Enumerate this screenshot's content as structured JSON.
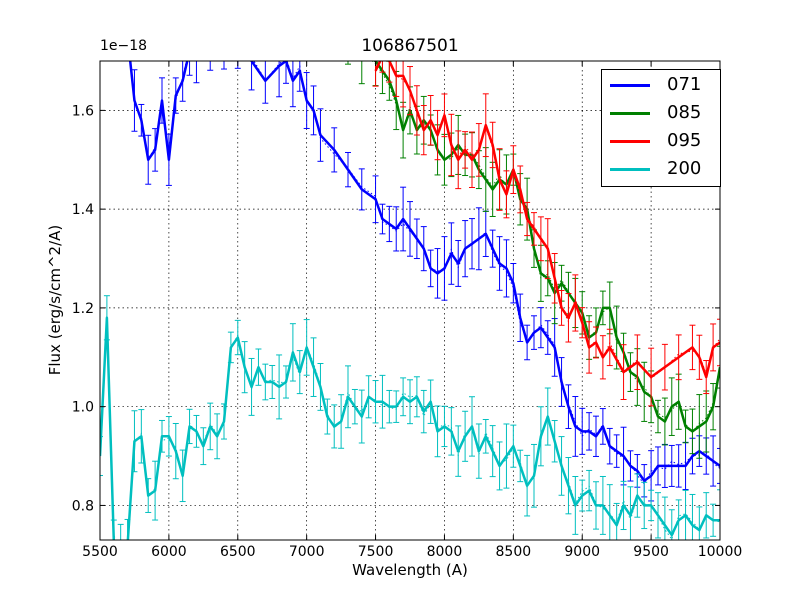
{
  "chart_data": {
    "type": "line",
    "title": "106867501",
    "y_offset_text": "1e−18",
    "xlabel": "Wavelength (A)",
    "ylabel": "Flux (erg/s/cm^2/A)",
    "xlim": [
      5500,
      10000
    ],
    "ylim": [
      0.73,
      1.7
    ],
    "grid": true,
    "legend_position": "top-right",
    "x_ticks": [
      5500,
      6000,
      6500,
      7000,
      7500,
      8000,
      8500,
      9000,
      9500,
      10000
    ],
    "x_tick_labels": [
      "5500",
      "6000",
      "6500",
      "7000",
      "7500",
      "8000",
      "8500",
      "9000",
      "9500",
      "10000"
    ],
    "y_ticks": [
      0.8,
      1.0,
      1.2,
      1.4,
      1.6
    ],
    "y_tick_labels": [
      "0.8",
      "1.0",
      "1.2",
      "1.4",
      "1.6"
    ],
    "series": [
      {
        "name": "071",
        "color": "#0000ff",
        "x": [
          5700,
          5750,
          5800,
          5850,
          5900,
          5950,
          6000,
          6050,
          6100,
          6150,
          6200,
          6300,
          6400,
          6500,
          6600,
          6700,
          6800,
          6850,
          6900,
          6950,
          7000,
          7050,
          7100,
          7200,
          7300,
          7400,
          7500,
          7550,
          7600,
          7650,
          7700,
          7750,
          7800,
          7850,
          7900,
          7950,
          8000,
          8050,
          8100,
          8150,
          8200,
          8250,
          8300,
          8350,
          8400,
          8450,
          8500,
          8550,
          8600,
          8650,
          8700,
          8750,
          8800,
          8850,
          8900,
          8950,
          9000,
          9050,
          9100,
          9150,
          9200,
          9250,
          9300,
          9350,
          9400,
          9450,
          9500,
          9550,
          9600,
          9650,
          9700,
          9750,
          9800,
          9850,
          9900,
          9950,
          10000
        ],
        "y": [
          1.75,
          1.62,
          1.58,
          1.5,
          1.52,
          1.62,
          1.5,
          1.63,
          1.66,
          1.72,
          1.72,
          1.74,
          1.72,
          1.75,
          1.7,
          1.66,
          1.69,
          1.7,
          1.66,
          1.68,
          1.62,
          1.6,
          1.55,
          1.52,
          1.48,
          1.44,
          1.42,
          1.38,
          1.37,
          1.36,
          1.38,
          1.36,
          1.34,
          1.32,
          1.28,
          1.27,
          1.28,
          1.31,
          1.29,
          1.32,
          1.33,
          1.34,
          1.35,
          1.32,
          1.29,
          1.28,
          1.25,
          1.18,
          1.13,
          1.15,
          1.16,
          1.14,
          1.12,
          1.05,
          1.0,
          0.96,
          0.95,
          0.95,
          0.94,
          0.96,
          0.92,
          0.91,
          0.9,
          0.88,
          0.87,
          0.85,
          0.86,
          0.88,
          0.88,
          0.88,
          0.88,
          0.88,
          0.9,
          0.91,
          0.9,
          0.89,
          0.88
        ]
      },
      {
        "name": "085",
        "color": "#008000",
        "x": [
          7300,
          7400,
          7500,
          7550,
          7600,
          7650,
          7700,
          7750,
          7800,
          7850,
          7900,
          7950,
          8000,
          8050,
          8100,
          8150,
          8200,
          8250,
          8300,
          8350,
          8400,
          8450,
          8500,
          8550,
          8600,
          8650,
          8700,
          8750,
          8800,
          8850,
          8900,
          8950,
          9000,
          9050,
          9100,
          9150,
          9200,
          9250,
          9300,
          9350,
          9400,
          9450,
          9500,
          9550,
          9600,
          9650,
          9700,
          9750,
          9800,
          9850,
          9900,
          9950,
          10000
        ],
        "y": [
          1.73,
          1.71,
          1.7,
          1.68,
          1.66,
          1.62,
          1.56,
          1.6,
          1.56,
          1.58,
          1.56,
          1.52,
          1.5,
          1.51,
          1.53,
          1.51,
          1.51,
          1.48,
          1.46,
          1.44,
          1.46,
          1.45,
          1.48,
          1.42,
          1.4,
          1.32,
          1.27,
          1.26,
          1.23,
          1.25,
          1.23,
          1.21,
          1.19,
          1.14,
          1.15,
          1.2,
          1.2,
          1.14,
          1.11,
          1.07,
          1.06,
          1.03,
          1.02,
          0.98,
          0.97,
          1.0,
          1.01,
          0.96,
          0.95,
          0.96,
          0.97,
          1.0,
          1.08
        ]
      },
      {
        "name": "095",
        "color": "#ff0000",
        "x": [
          7500,
          7550,
          7600,
          7650,
          7700,
          7750,
          7800,
          7850,
          7900,
          7950,
          8000,
          8050,
          8100,
          8150,
          8200,
          8250,
          8300,
          8350,
          8400,
          8450,
          8500,
          8550,
          8600,
          8650,
          8700,
          8750,
          8800,
          8850,
          8900,
          8950,
          9000,
          9050,
          9100,
          9150,
          9200,
          9300,
          9400,
          9500,
          9600,
          9700,
          9800,
          9850,
          9900,
          9950,
          10000
        ],
        "y": [
          1.68,
          1.71,
          1.7,
          1.67,
          1.67,
          1.64,
          1.6,
          1.56,
          1.58,
          1.55,
          1.59,
          1.53,
          1.5,
          1.52,
          1.5,
          1.52,
          1.57,
          1.53,
          1.46,
          1.43,
          1.48,
          1.44,
          1.38,
          1.36,
          1.34,
          1.32,
          1.26,
          1.2,
          1.18,
          1.21,
          1.17,
          1.12,
          1.13,
          1.1,
          1.12,
          1.07,
          1.09,
          1.06,
          1.08,
          1.1,
          1.12,
          1.1,
          1.06,
          1.12,
          1.13
        ]
      },
      {
        "name": "200",
        "color": "#00bfbf",
        "x": [
          5500,
          5550,
          5600,
          5650,
          5700,
          5750,
          5800,
          5850,
          5900,
          5950,
          6000,
          6050,
          6100,
          6150,
          6200,
          6250,
          6300,
          6350,
          6400,
          6450,
          6500,
          6550,
          6600,
          6650,
          6700,
          6750,
          6800,
          6850,
          6900,
          6950,
          7000,
          7050,
          7100,
          7150,
          7200,
          7250,
          7300,
          7350,
          7400,
          7450,
          7500,
          7550,
          7600,
          7650,
          7700,
          7750,
          7800,
          7850,
          7900,
          7950,
          8000,
          8050,
          8100,
          8150,
          8200,
          8250,
          8300,
          8350,
          8400,
          8450,
          8500,
          8550,
          8600,
          8650,
          8700,
          8750,
          8800,
          8850,
          8900,
          8950,
          9000,
          9050,
          9100,
          9150,
          9200,
          9250,
          9300,
          9350,
          9400,
          9450,
          9500,
          9550,
          9600,
          9650,
          9700,
          9750,
          9800,
          9850,
          9900,
          9950,
          10000
        ],
        "y": [
          0.9,
          1.18,
          0.73,
          0.7,
          0.72,
          0.93,
          0.94,
          0.82,
          0.83,
          0.94,
          0.94,
          0.91,
          0.86,
          0.96,
          0.95,
          0.92,
          0.96,
          0.94,
          0.97,
          1.12,
          1.14,
          1.08,
          1.04,
          1.08,
          1.05,
          1.05,
          1.04,
          1.05,
          1.11,
          1.07,
          1.12,
          1.08,
          1.04,
          0.98,
          0.96,
          0.97,
          1.02,
          1.0,
          0.98,
          1.02,
          1.01,
          1.01,
          1.0,
          1.0,
          1.02,
          1.01,
          1.02,
          0.99,
          1.01,
          0.95,
          0.96,
          0.95,
          0.91,
          0.94,
          0.96,
          0.91,
          0.94,
          0.91,
          0.88,
          0.9,
          0.92,
          0.88,
          0.84,
          0.86,
          0.94,
          0.98,
          0.93,
          0.88,
          0.84,
          0.8,
          0.82,
          0.83,
          0.8,
          0.8,
          0.78,
          0.76,
          0.8,
          0.78,
          0.82,
          0.8,
          0.8,
          0.78,
          0.76,
          0.74,
          0.77,
          0.78,
          0.76,
          0.75,
          0.78,
          0.77,
          0.77
        ]
      }
    ]
  }
}
